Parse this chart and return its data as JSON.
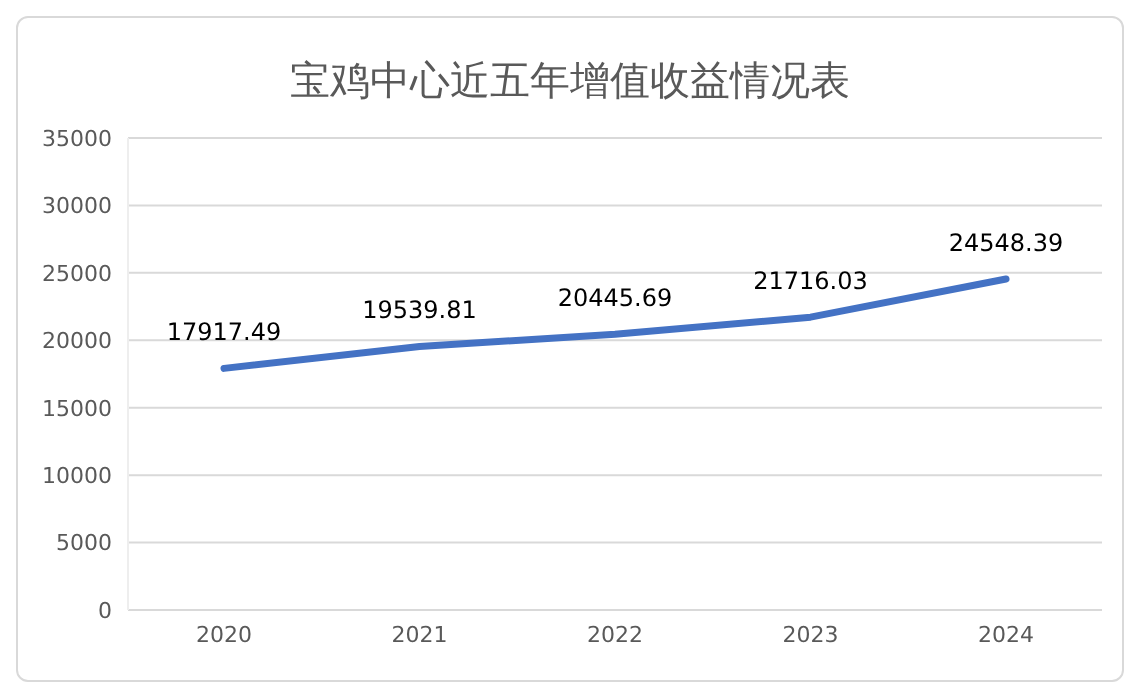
{
  "chart_data": {
    "type": "line",
    "title": "宝鸡中心近五年增值收益情况表",
    "categories": [
      "2020",
      "2021",
      "2022",
      "2023",
      "2024"
    ],
    "series": [
      {
        "color": "#4472c4",
        "values": [
          17917.49,
          19539.81,
          20445.69,
          21716.03,
          24548.39
        ]
      }
    ],
    "ylim": [
      0,
      35000
    ],
    "yticks": [
      0,
      5000,
      10000,
      15000,
      20000,
      25000,
      30000,
      35000
    ],
    "grid": "y",
    "legend": false,
    "marker": "none",
    "line_style": "solid",
    "data_labels": true
  }
}
